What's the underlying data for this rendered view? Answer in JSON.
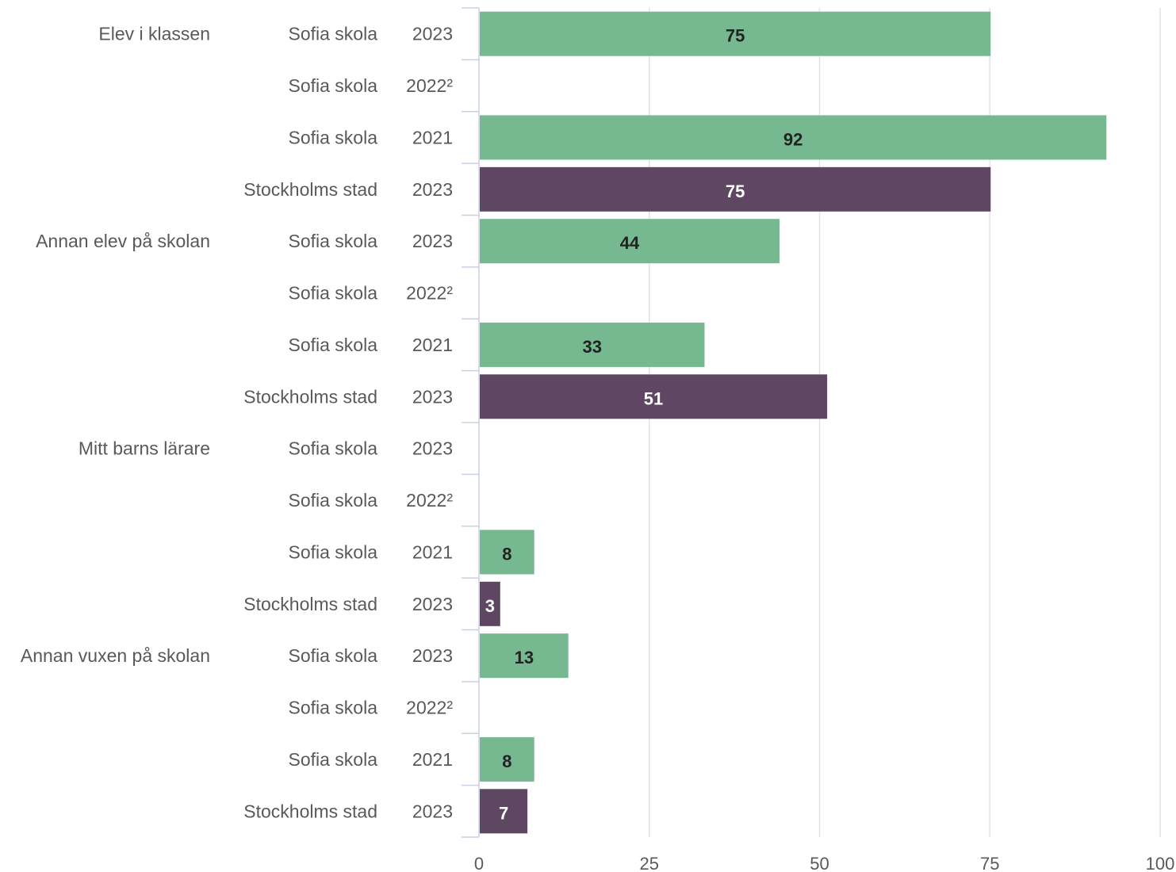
{
  "chart_data": {
    "type": "bar",
    "orientation": "horizontal",
    "xlim": [
      0,
      100
    ],
    "xticks": [
      0,
      25,
      50,
      75,
      100
    ],
    "grid": true,
    "colors": {
      "Sofia skola": "#76b88f",
      "Stockholms stad": "#5f4663",
      "label_on_green": "#222222",
      "label_on_purple": "#ffffff"
    },
    "rows": [
      {
        "category": "Elev i klassen",
        "school": "Sofia skola",
        "year": "2023",
        "value": 75
      },
      {
        "category": "",
        "school": "Sofia skola",
        "year": "2022²",
        "value": null
      },
      {
        "category": "",
        "school": "Sofia skola",
        "year": "2021",
        "value": 92
      },
      {
        "category": "",
        "school": "Stockholms stad",
        "year": "2023",
        "value": 75
      },
      {
        "category": "Annan elev på skolan",
        "school": "Sofia skola",
        "year": "2023",
        "value": 44
      },
      {
        "category": "",
        "school": "Sofia skola",
        "year": "2022²",
        "value": null
      },
      {
        "category": "",
        "school": "Sofia skola",
        "year": "2021",
        "value": 33
      },
      {
        "category": "",
        "school": "Stockholms stad",
        "year": "2023",
        "value": 51
      },
      {
        "category": "Mitt barns lärare",
        "school": "Sofia skola",
        "year": "2023",
        "value": null
      },
      {
        "category": "",
        "school": "Sofia skola",
        "year": "2022²",
        "value": null
      },
      {
        "category": "",
        "school": "Sofia skola",
        "year": "2021",
        "value": 8
      },
      {
        "category": "",
        "school": "Stockholms stad",
        "year": "2023",
        "value": 3
      },
      {
        "category": "Annan vuxen på skolan",
        "school": "Sofia skola",
        "year": "2023",
        "value": 13
      },
      {
        "category": "",
        "school": "Sofia skola",
        "year": "2022²",
        "value": null
      },
      {
        "category": "",
        "school": "Sofia skola",
        "year": "2021",
        "value": 8
      },
      {
        "category": "",
        "school": "Stockholms stad",
        "year": "2023",
        "value": 7
      }
    ]
  }
}
